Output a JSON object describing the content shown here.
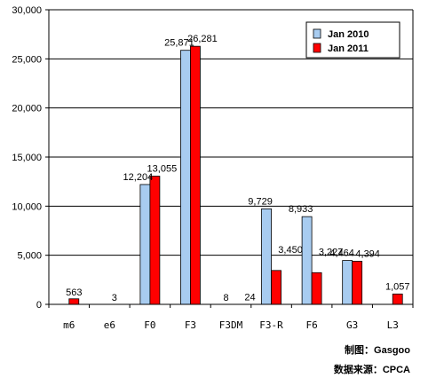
{
  "chart_data": {
    "type": "bar",
    "categories": [
      "m6",
      "e6",
      "F0",
      "F3",
      "F3DM",
      "F3-R",
      "F6",
      "G3",
      "L3"
    ],
    "series": [
      {
        "name": "Jan 2010",
        "color": "#a8ccf0",
        "values": [
          null,
          null,
          12204,
          25871,
          8,
          9729,
          8933,
          4464,
          null
        ]
      },
      {
        "name": "Jan 2011",
        "color": "#ff0000",
        "values": [
          563,
          3,
          13055,
          26281,
          24,
          3450,
          3227,
          4394,
          1057
        ]
      }
    ],
    "data_labels": {
      "Jan 2010": [
        "",
        "",
        "12,204",
        "25,871",
        "8",
        "9,729",
        "8,933",
        "4,464",
        ""
      ],
      "Jan 2011": [
        "563",
        "3",
        "13,055",
        "26,281",
        "24",
        "3,450",
        "3,227",
        "4,394",
        "1,057"
      ]
    },
    "ylim": [
      0,
      30000
    ],
    "yticks": [
      0,
      5000,
      10000,
      15000,
      20000,
      25000,
      30000
    ],
    "ytick_labels": [
      "0",
      "5,000",
      "10,000",
      "15,000",
      "20,000",
      "25,000",
      "30,000"
    ],
    "grid": true,
    "legend_position": "top-right",
    "title": "",
    "xlabel": "",
    "ylabel": ""
  },
  "credits": {
    "made_by": "制图：Gasgoo",
    "source": "数据来源：CPCA"
  }
}
